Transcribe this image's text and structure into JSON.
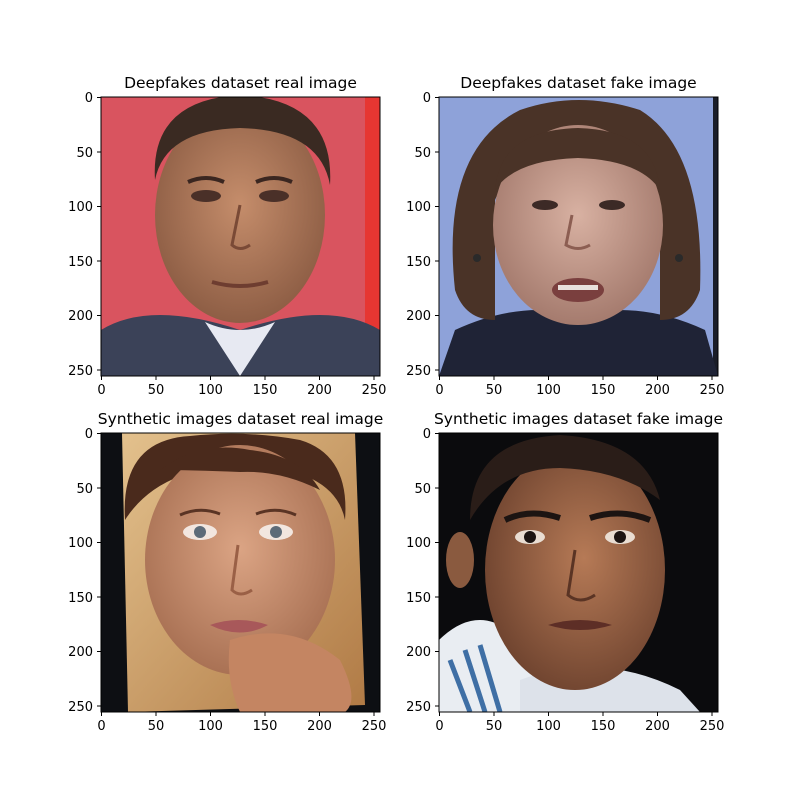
{
  "figure": {
    "panels": [
      {
        "title": "Deepfakes dataset real image",
        "xticks": [
          "0",
          "50",
          "100",
          "150",
          "200",
          "250"
        ],
        "yticks": [
          "0",
          "50",
          "100",
          "150",
          "200",
          "250"
        ],
        "image_subject": "man-face",
        "colors": {
          "background": "#d9545f",
          "skin": "#b07a5c",
          "hair": "#3a2a22",
          "suit": "#3b4258",
          "shirt": "#e7e9f2",
          "edge": "#e63632"
        }
      },
      {
        "title": "Deepfakes dataset fake image",
        "xticks": [
          "0",
          "50",
          "100",
          "150",
          "200",
          "250"
        ],
        "yticks": [
          "0",
          "50",
          "100",
          "150",
          "200",
          "250"
        ],
        "image_subject": "woman-face",
        "colors": {
          "background": "#8ea2d9",
          "skin": "#c49a8c",
          "hair": "#4a3327",
          "jacket": "#1f2336",
          "edge": "#1a1d28"
        }
      },
      {
        "title": "Synthetic images dataset real image",
        "xticks": [
          "0",
          "50",
          "100",
          "150",
          "200",
          "250"
        ],
        "yticks": [
          "0",
          "50",
          "100",
          "150",
          "200",
          "250"
        ],
        "image_subject": "woman-face",
        "colors": {
          "background": "#0d0f13",
          "photo": "#cfa06a",
          "skin": "#c68c6c",
          "hair": "#4a2a1c",
          "lips": "#a8585a"
        }
      },
      {
        "title": "Synthetic images dataset fake image",
        "xticks": [
          "0",
          "50",
          "100",
          "150",
          "200",
          "250"
        ],
        "yticks": [
          "0",
          "50",
          "100",
          "150",
          "200",
          "250"
        ],
        "image_subject": "man-face",
        "colors": {
          "background": "#0b0b0d",
          "skin": "#9a6446",
          "hair": "#2a1d18",
          "shirt": "#e9edf2",
          "stripe": "#3f6fa5"
        }
      }
    ]
  }
}
